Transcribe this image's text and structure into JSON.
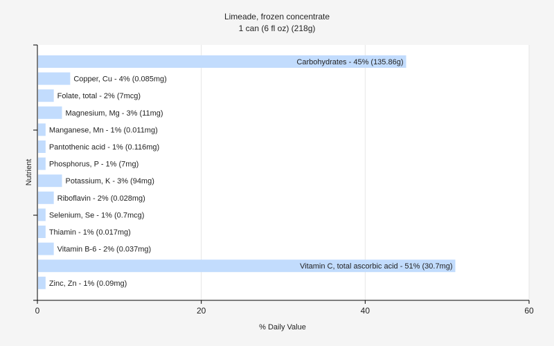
{
  "chart_data": {
    "type": "bar",
    "orientation": "horizontal",
    "title": "Limeade, frozen concentrate",
    "subtitle": "1 can (6 fl oz) (218g)",
    "xlabel": "% Daily Value",
    "ylabel": "Nutrient",
    "xlim": [
      0,
      60
    ],
    "xticks": [
      0,
      20,
      40,
      60
    ],
    "grid": true,
    "bar_color": "#c2dcfd",
    "categories": [
      "Carbohydrates",
      "Copper, Cu",
      "Folate, total",
      "Magnesium, Mg",
      "Manganese, Mn",
      "Pantothenic acid",
      "Phosphorus, P",
      "Potassium, K",
      "Riboflavin",
      "Selenium, Se",
      "Thiamin",
      "Vitamin B-6",
      "Vitamin C, total ascorbic acid",
      "Zinc, Zn"
    ],
    "values": [
      45,
      4,
      2,
      3,
      1,
      1,
      1,
      3,
      2,
      1,
      1,
      2,
      51,
      1
    ],
    "labels": [
      "Carbohydrates - 45% (135.86g)",
      "Copper, Cu - 4% (0.085mg)",
      "Folate, total - 2% (7mcg)",
      "Magnesium, Mg - 3% (11mg)",
      "Manganese, Mn - 1% (0.011mg)",
      "Pantothenic acid - 1% (0.116mg)",
      "Phosphorus, P - 1% (7mg)",
      "Potassium, K - 3% (94mg)",
      "Riboflavin - 2% (0.028mg)",
      "Selenium, Se - 1% (0.7mcg)",
      "Thiamin - 1% (0.017mg)",
      "Vitamin B-6 - 2% (0.037mg)",
      "Vitamin C, total ascorbic acid - 51% (30.7mg)",
      "Zinc, Zn - 1% (0.09mg)"
    ]
  }
}
